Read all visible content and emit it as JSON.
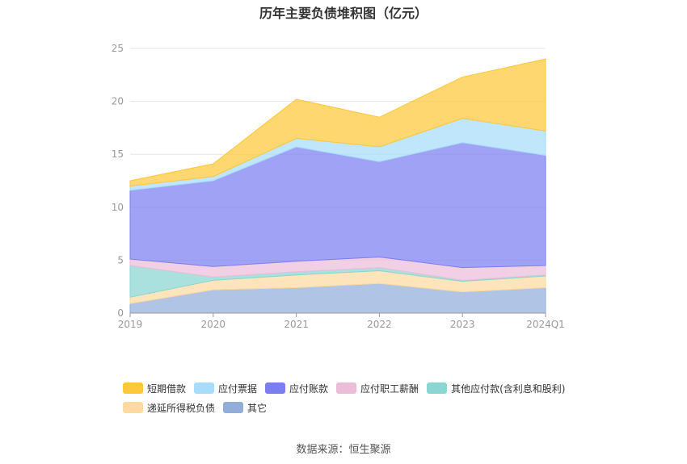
{
  "title": "历年主要负债堆积图（亿元）",
  "source": "数据来源：恒生聚源",
  "colors": {
    "短期借款": "#ffc73a",
    "应付票据": "#a8dcfb",
    "应付账款": "#7b7ef1",
    "应付职工薪酬": "#ebbdd9",
    "其他应付款(含利息和股利)": "#89d6d3",
    "递延所得税负债": "#fed9a0",
    "其它": "#91aedb"
  },
  "chart_data": {
    "type": "area",
    "stacked": true,
    "categories": [
      "2019",
      "2020",
      "2021",
      "2022",
      "2023",
      "2024Q1"
    ],
    "ylim": [
      0,
      25
    ],
    "yticks": [
      0,
      5,
      10,
      15,
      20,
      25
    ],
    "grid": true,
    "legend_position": "bottom",
    "series": [
      {
        "name": "其它",
        "values": [
          0.9,
          2.2,
          2.4,
          2.8,
          2.0,
          2.4
        ]
      },
      {
        "name": "递延所得税负债",
        "values": [
          0.6,
          0.9,
          1.2,
          1.2,
          1.0,
          1.1
        ]
      },
      {
        "name": "其他应付款(含利息和股利)",
        "values": [
          3.0,
          0.3,
          0.3,
          0.3,
          0.1,
          0.1
        ]
      },
      {
        "name": "应付职工薪酬",
        "values": [
          0.6,
          1.0,
          1.0,
          1.0,
          1.2,
          0.9
        ]
      },
      {
        "name": "应付账款",
        "values": [
          6.5,
          8.1,
          10.8,
          9.0,
          11.8,
          10.4
        ]
      },
      {
        "name": "应付票据",
        "values": [
          0.4,
          0.4,
          0.8,
          1.4,
          2.3,
          2.3
        ]
      },
      {
        "name": "短期借款",
        "values": [
          0.5,
          1.2,
          3.7,
          2.8,
          3.9,
          6.8
        ]
      }
    ]
  }
}
